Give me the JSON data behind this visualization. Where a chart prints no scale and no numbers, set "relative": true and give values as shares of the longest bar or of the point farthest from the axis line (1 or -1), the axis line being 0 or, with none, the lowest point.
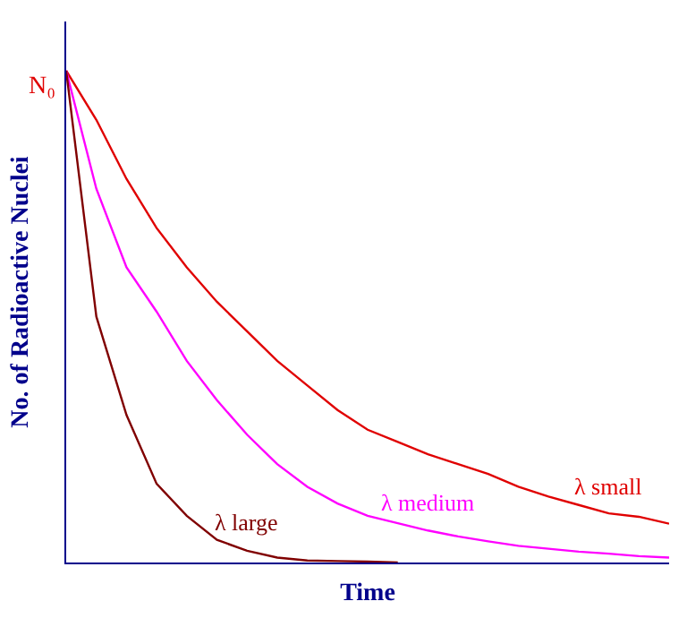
{
  "chart_data": {
    "type": "line",
    "relative": true,
    "xlabel": "Time",
    "ylabel": "No. of Radioactive Nuclei",
    "legend": false,
    "marker": "none",
    "line_style": "solid",
    "categories": [
      null,
      null,
      null,
      null,
      null,
      null,
      null,
      null,
      null,
      null,
      null,
      null,
      null,
      null,
      null,
      null,
      null,
      null,
      null,
      null,
      null
    ],
    "annotations": [
      "N₀"
    ],
    "series": [
      {
        "name": "λ small",
        "color": "#e00000",
        "values": [
          1,
          0.9,
          0.78,
          0.68,
          0.6,
          0.53,
          0.47,
          0.41,
          0.36,
          0.31,
          0.27,
          0.245,
          0.22,
          0.2,
          0.18,
          0.154,
          0.134,
          0.117,
          0.1,
          0.093,
          0.079
        ]
      },
      {
        "name": "λ medium",
        "color": "#ff00ff",
        "values": [
          1,
          0.76,
          0.6,
          0.51,
          0.41,
          0.33,
          0.26,
          0.2,
          0.154,
          0.12,
          0.095,
          0.08,
          0.065,
          0.053,
          0.043,
          0.034,
          0.028,
          0.022,
          0.018,
          0.013,
          0.01
        ]
      },
      {
        "name": "λ large",
        "color": "#800000",
        "values": [
          1,
          0.5,
          0.3,
          0.16,
          0.095,
          0.046,
          0.024,
          0.01,
          0.004,
          0.003,
          0.002,
          0,
          null,
          null,
          null,
          null,
          null,
          null,
          null,
          null,
          null
        ]
      }
    ]
  }
}
